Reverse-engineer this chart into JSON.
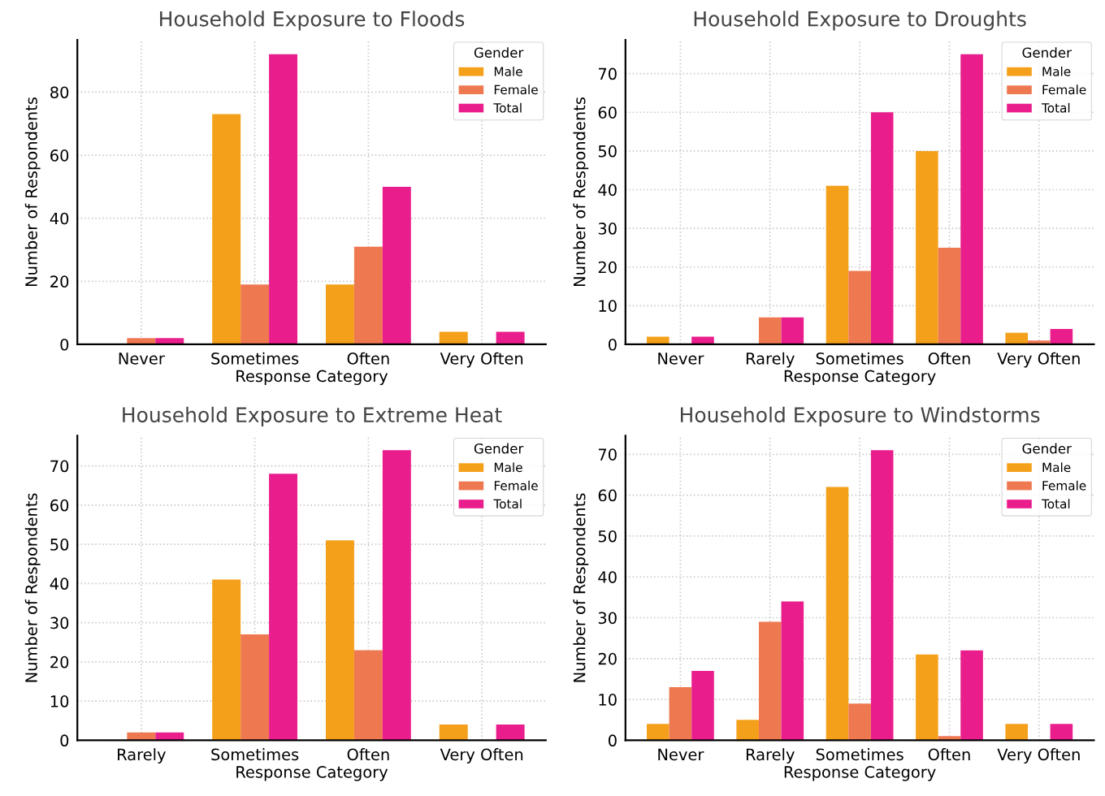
{
  "chart_data": [
    {
      "type": "bar",
      "title": "Household Exposure to Floods",
      "xlabel": "Response Category",
      "ylabel": "Number of Respondents",
      "legend_title": "Gender",
      "legend": "top right",
      "grid": true,
      "categories": [
        "Never",
        "Sometimes",
        "Often",
        "Very Often"
      ],
      "ylim": [
        0,
        96.6
      ],
      "yticks": [
        0,
        20,
        40,
        60,
        80
      ],
      "series": [
        {
          "name": "Male",
          "color": "#f5a01a",
          "values": [
            0,
            73,
            19,
            4
          ]
        },
        {
          "name": "Female",
          "color": "#ee7850",
          "values": [
            2,
            19,
            31,
            0
          ]
        },
        {
          "name": "Total",
          "color": "#e91e8c",
          "values": [
            2,
            92,
            50,
            4
          ]
        }
      ]
    },
    {
      "type": "bar",
      "title": "Household Exposure to Droughts",
      "xlabel": "Response Category",
      "ylabel": "Number of Respondents",
      "legend_title": "Gender",
      "legend": "top right",
      "grid": true,
      "categories": [
        "Never",
        "Rarely",
        "Sometimes",
        "Often",
        "Very Often"
      ],
      "ylim": [
        0,
        78.75
      ],
      "yticks": [
        0,
        10,
        20,
        30,
        40,
        50,
        60,
        70
      ],
      "series": [
        {
          "name": "Male",
          "color": "#f5a01a",
          "values": [
            2,
            0,
            41,
            50,
            3
          ]
        },
        {
          "name": "Female",
          "color": "#ee7850",
          "values": [
            0,
            7,
            19,
            25,
            1
          ]
        },
        {
          "name": "Total",
          "color": "#e91e8c",
          "values": [
            2,
            7,
            60,
            75,
            4
          ]
        }
      ]
    },
    {
      "type": "bar",
      "title": "Household Exposure to Extreme Heat",
      "xlabel": "Response Category",
      "ylabel": "Number of Respondents",
      "legend_title": "Gender",
      "legend": "top right",
      "grid": true,
      "categories": [
        "Rarely",
        "Sometimes",
        "Often",
        "Very Often"
      ],
      "ylim": [
        0,
        77.7
      ],
      "yticks": [
        0,
        10,
        20,
        30,
        40,
        50,
        60,
        70
      ],
      "series": [
        {
          "name": "Male",
          "color": "#f5a01a",
          "values": [
            0,
            41,
            51,
            4
          ]
        },
        {
          "name": "Female",
          "color": "#ee7850",
          "values": [
            2,
            27,
            23,
            0
          ]
        },
        {
          "name": "Total",
          "color": "#e91e8c",
          "values": [
            2,
            68,
            74,
            4
          ]
        }
      ]
    },
    {
      "type": "bar",
      "title": "Household Exposure to Windstorms",
      "xlabel": "Response Category",
      "ylabel": "Number of Respondents",
      "legend_title": "Gender",
      "legend": "top right",
      "grid": true,
      "categories": [
        "Never",
        "Rarely",
        "Sometimes",
        "Often",
        "Very Often"
      ],
      "ylim": [
        0,
        74.55
      ],
      "yticks": [
        0,
        10,
        20,
        30,
        40,
        50,
        60,
        70
      ],
      "series": [
        {
          "name": "Male",
          "color": "#f5a01a",
          "values": [
            4,
            5,
            62,
            21,
            4
          ]
        },
        {
          "name": "Female",
          "color": "#ee7850",
          "values": [
            13,
            29,
            9,
            1,
            0
          ]
        },
        {
          "name": "Total",
          "color": "#e91e8c",
          "values": [
            17,
            34,
            71,
            22,
            4
          ]
        }
      ]
    }
  ]
}
